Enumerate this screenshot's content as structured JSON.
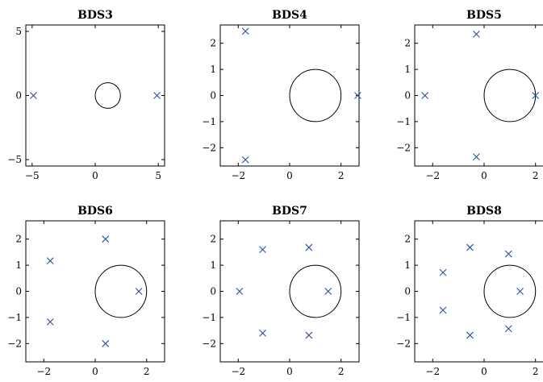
{
  "chart_data": [
    {
      "type": "scatter",
      "title": "BDS3",
      "xlim": [
        -5.5,
        5.5
      ],
      "ylim": [
        -5.5,
        5.5
      ],
      "xticks": [
        -5,
        0,
        5
      ],
      "yticks": [
        -5,
        0,
        5
      ],
      "circle": {
        "center": [
          1,
          0
        ],
        "radius": 1
      },
      "marker": "x",
      "marker_color": "#2b4fa3",
      "points": [
        [
          -4.9,
          0
        ],
        [
          4.9,
          0
        ]
      ]
    },
    {
      "type": "scatter",
      "title": "BDS4",
      "xlim": [
        -2.7,
        2.7
      ],
      "ylim": [
        -2.7,
        2.7
      ],
      "xticks": [
        -2,
        0,
        2
      ],
      "yticks": [
        -2,
        -1,
        0,
        1,
        2
      ],
      "circle": {
        "center": [
          1,
          0
        ],
        "radius": 1
      },
      "marker": "x",
      "marker_color": "#2b4fa3",
      "points": [
        [
          -1.72,
          2.46
        ],
        [
          -1.72,
          -2.46
        ],
        [
          2.65,
          0
        ]
      ]
    },
    {
      "type": "scatter",
      "title": "BDS5",
      "xlim": [
        -2.7,
        2.7
      ],
      "ylim": [
        -2.7,
        2.7
      ],
      "xticks": [
        -2,
        0,
        2
      ],
      "yticks": [
        -2,
        -1,
        0,
        1,
        2
      ],
      "circle": {
        "center": [
          1,
          0
        ],
        "radius": 1
      },
      "marker": "x",
      "marker_color": "#2b4fa3",
      "points": [
        [
          -2.3,
          0
        ],
        [
          -0.3,
          2.35
        ],
        [
          -0.3,
          -2.35
        ],
        [
          2.0,
          0
        ]
      ]
    },
    {
      "type": "scatter",
      "title": "BDS6",
      "xlim": [
        -2.7,
        2.7
      ],
      "ylim": [
        -2.7,
        2.7
      ],
      "xticks": [
        -2,
        0,
        2
      ],
      "yticks": [
        -2,
        -1,
        0,
        1,
        2
      ],
      "circle": {
        "center": [
          1,
          0
        ],
        "radius": 1
      },
      "marker": "x",
      "marker_color": "#2b4fa3",
      "points": [
        [
          0.4,
          2.0
        ],
        [
          -1.75,
          1.17
        ],
        [
          -1.75,
          -1.17
        ],
        [
          0.4,
          -2.0
        ],
        [
          1.7,
          0
        ]
      ]
    },
    {
      "type": "scatter",
      "title": "BDS7",
      "xlim": [
        -2.7,
        2.7
      ],
      "ylim": [
        -2.7,
        2.7
      ],
      "xticks": [
        -2,
        0,
        2
      ],
      "yticks": [
        -2,
        -1,
        0,
        1,
        2
      ],
      "circle": {
        "center": [
          1,
          0
        ],
        "radius": 1
      },
      "marker": "x",
      "marker_color": "#2b4fa3",
      "points": [
        [
          -1.95,
          0
        ],
        [
          -1.05,
          1.6
        ],
        [
          -1.05,
          -1.6
        ],
        [
          0.75,
          1.68
        ],
        [
          0.75,
          -1.68
        ],
        [
          1.5,
          0
        ]
      ]
    },
    {
      "type": "scatter",
      "title": "BDS8",
      "xlim": [
        -2.7,
        2.7
      ],
      "ylim": [
        -2.7,
        2.7
      ],
      "xticks": [
        -2,
        0,
        2
      ],
      "yticks": [
        -2,
        -1,
        0,
        1,
        2
      ],
      "circle": {
        "center": [
          1,
          0
        ],
        "radius": 1
      },
      "marker": "x",
      "marker_color": "#2b4fa3",
      "points": [
        [
          -1.6,
          0.72
        ],
        [
          -1.6,
          -0.72
        ],
        [
          -0.55,
          1.68
        ],
        [
          -0.55,
          -1.68
        ],
        [
          0.95,
          1.43
        ],
        [
          0.95,
          -1.43
        ],
        [
          1.4,
          0
        ]
      ]
    }
  ]
}
